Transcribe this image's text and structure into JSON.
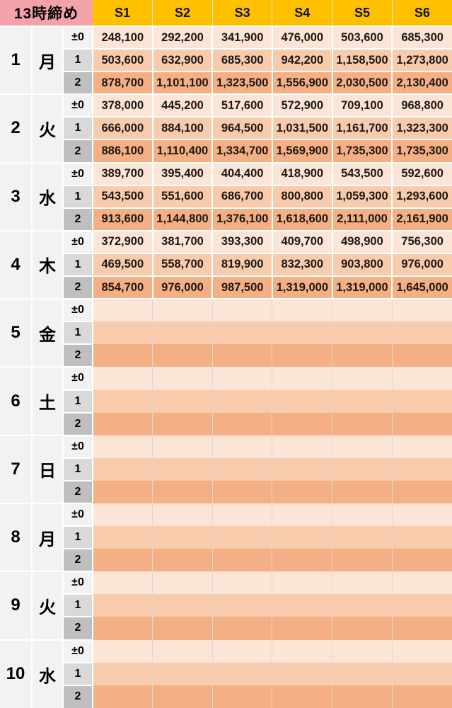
{
  "header": {
    "title": "13時締め",
    "columns": [
      "S1",
      "S2",
      "S3",
      "S4",
      "S5",
      "S6"
    ]
  },
  "levels": [
    "±0",
    "1",
    "2"
  ],
  "groups": [
    {
      "num": "1",
      "day": "月",
      "rows": [
        [
          "248,100",
          "292,200",
          "341,900",
          "476,000",
          "503,600",
          "685,300"
        ],
        [
          "503,600",
          "632,900",
          "685,300",
          "942,200",
          "1,158,500",
          "1,273,800"
        ],
        [
          "878,700",
          "1,101,100",
          "1,323,500",
          "1,556,900",
          "2,030,500",
          "2,130,400"
        ]
      ]
    },
    {
      "num": "2",
      "day": "火",
      "rows": [
        [
          "378,000",
          "445,200",
          "517,600",
          "572,900",
          "709,100",
          "968,800"
        ],
        [
          "666,000",
          "884,100",
          "964,500",
          "1,031,500",
          "1,161,700",
          "1,323,300"
        ],
        [
          "886,100",
          "1,110,400",
          "1,334,700",
          "1,569,900",
          "1,735,300",
          "1,735,300"
        ]
      ]
    },
    {
      "num": "3",
      "day": "水",
      "rows": [
        [
          "389,700",
          "395,400",
          "404,400",
          "418,900",
          "543,500",
          "592,600"
        ],
        [
          "543,500",
          "551,600",
          "686,700",
          "800,800",
          "1,059,300",
          "1,293,600"
        ],
        [
          "913,600",
          "1,144,800",
          "1,376,100",
          "1,618,600",
          "2,111,000",
          "2,161,900"
        ]
      ]
    },
    {
      "num": "4",
      "day": "木",
      "rows": [
        [
          "372,900",
          "381,700",
          "393,300",
          "409,700",
          "498,900",
          "756,300"
        ],
        [
          "469,500",
          "558,700",
          "819,900",
          "832,300",
          "903,800",
          "976,000"
        ],
        [
          "854,700",
          "976,000",
          "987,500",
          "1,319,000",
          "1,319,000",
          "1,645,000"
        ]
      ]
    },
    {
      "num": "5",
      "day": "金",
      "rows": [
        [
          "",
          "",
          "",
          "",
          "",
          ""
        ],
        [
          "",
          "",
          "",
          "",
          "",
          ""
        ],
        [
          "",
          "",
          "",
          "",
          "",
          ""
        ]
      ]
    },
    {
      "num": "6",
      "day": "土",
      "rows": [
        [
          "",
          "",
          "",
          "",
          "",
          ""
        ],
        [
          "",
          "",
          "",
          "",
          "",
          ""
        ],
        [
          "",
          "",
          "",
          "",
          "",
          ""
        ]
      ]
    },
    {
      "num": "7",
      "day": "日",
      "rows": [
        [
          "",
          "",
          "",
          "",
          "",
          ""
        ],
        [
          "",
          "",
          "",
          "",
          "",
          ""
        ],
        [
          "",
          "",
          "",
          "",
          "",
          ""
        ]
      ]
    },
    {
      "num": "8",
      "day": "月",
      "rows": [
        [
          "",
          "",
          "",
          "",
          "",
          ""
        ],
        [
          "",
          "",
          "",
          "",
          "",
          ""
        ],
        [
          "",
          "",
          "",
          "",
          "",
          ""
        ]
      ]
    },
    {
      "num": "9",
      "day": "火",
      "rows": [
        [
          "",
          "",
          "",
          "",
          "",
          ""
        ],
        [
          "",
          "",
          "",
          "",
          "",
          ""
        ],
        [
          "",
          "",
          "",
          "",
          "",
          ""
        ]
      ]
    },
    {
      "num": "10",
      "day": "水",
      "rows": [
        [
          "",
          "",
          "",
          "",
          "",
          ""
        ],
        [
          "",
          "",
          "",
          "",
          "",
          ""
        ],
        [
          "",
          "",
          "",
          "",
          "",
          ""
        ]
      ]
    }
  ],
  "colors": {
    "pink": "#F4A2AA",
    "gold": "#FFC000",
    "peach0": "#FCE4D6",
    "peach1": "#F8CBAD",
    "peach2": "#F4B084",
    "gray0": "#F2F2F2",
    "gray1": "#D9D9D9",
    "gray2": "#BFBFBF",
    "ink": "#1C1714",
    "grid": "#FFFFFF"
  }
}
